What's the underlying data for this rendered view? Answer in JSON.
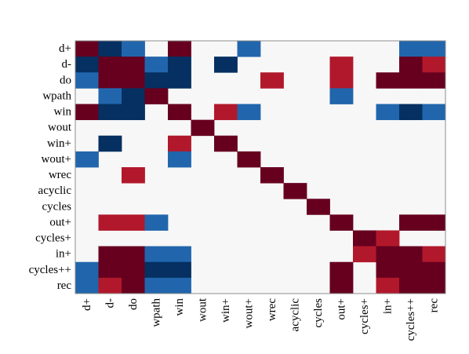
{
  "chart_data": {
    "type": "heatmap",
    "title": "",
    "xlabel": "",
    "ylabel": "",
    "rows": [
      "d+",
      "d-",
      "do",
      "wpath",
      "win",
      "wout",
      "win+",
      "wout+",
      "wrec",
      "acyclic",
      "cycles",
      "out+",
      "cycles+",
      "in+",
      "cycles++",
      "rec"
    ],
    "columns": [
      "d+",
      "d-",
      "do",
      "wpath",
      "win",
      "wout",
      "win+",
      "wout+",
      "wrec",
      "acyclic",
      "cycles",
      "out+",
      "cycles+",
      "in+",
      "cycles++",
      "rec"
    ],
    "value_range": [
      -1,
      1
    ],
    "colors": {
      "strong_positive": "#67001f",
      "positive": "#b2182b",
      "neutral": "#f7f7f7",
      "negative": "#2166ac",
      "strong_negative": "#053061"
    },
    "values": [
      [
        1.0,
        -1.0,
        -0.7,
        0.0,
        1.0,
        0.0,
        0.0,
        -0.7,
        0.0,
        0.0,
        0.0,
        0.0,
        0.0,
        0.0,
        -0.7,
        -0.7
      ],
      [
        -1.0,
        1.0,
        1.0,
        -0.7,
        -1.0,
        0.0,
        -1.0,
        0.0,
        0.0,
        0.0,
        0.0,
        0.7,
        0.0,
        0.0,
        1.0,
        0.7
      ],
      [
        -0.7,
        1.0,
        1.0,
        -1.0,
        -1.0,
        0.0,
        0.0,
        0.0,
        0.7,
        0.0,
        0.0,
        0.7,
        0.0,
        1.0,
        1.0,
        1.0
      ],
      [
        0.0,
        -0.7,
        -1.0,
        1.0,
        0.0,
        0.0,
        0.0,
        0.0,
        0.0,
        0.0,
        0.0,
        -0.7,
        0.0,
        0.0,
        0.0,
        0.0
      ],
      [
        1.0,
        -1.0,
        -1.0,
        0.0,
        1.0,
        0.0,
        0.7,
        -0.7,
        0.0,
        0.0,
        0.0,
        0.0,
        0.0,
        -0.7,
        -1.0,
        -0.7
      ],
      [
        0.0,
        0.0,
        0.0,
        0.0,
        0.0,
        1.0,
        0.0,
        0.0,
        0.0,
        0.0,
        0.0,
        0.0,
        0.0,
        0.0,
        0.0,
        0.0
      ],
      [
        0.0,
        -1.0,
        0.0,
        0.0,
        0.7,
        0.0,
        1.0,
        0.0,
        0.0,
        0.0,
        0.0,
        0.0,
        0.0,
        0.0,
        0.0,
        0.0
      ],
      [
        -0.7,
        0.0,
        0.0,
        0.0,
        -0.7,
        0.0,
        0.0,
        1.0,
        0.0,
        0.0,
        0.0,
        0.0,
        0.0,
        0.0,
        0.0,
        0.0
      ],
      [
        0.0,
        0.0,
        0.7,
        0.0,
        0.0,
        0.0,
        0.0,
        0.0,
        1.0,
        0.0,
        0.0,
        0.0,
        0.0,
        0.0,
        0.0,
        0.0
      ],
      [
        0.0,
        0.0,
        0.0,
        0.0,
        0.0,
        0.0,
        0.0,
        0.0,
        0.0,
        1.0,
        0.0,
        0.0,
        0.0,
        0.0,
        0.0,
        0.0
      ],
      [
        0.0,
        0.0,
        0.0,
        0.0,
        0.0,
        0.0,
        0.0,
        0.0,
        0.0,
        0.0,
        1.0,
        0.0,
        0.0,
        0.0,
        0.0,
        0.0
      ],
      [
        0.0,
        0.7,
        0.7,
        -0.7,
        0.0,
        0.0,
        0.0,
        0.0,
        0.0,
        0.0,
        0.0,
        1.0,
        0.0,
        0.0,
        1.0,
        1.0
      ],
      [
        0.0,
        0.0,
        0.0,
        0.0,
        0.0,
        0.0,
        0.0,
        0.0,
        0.0,
        0.0,
        0.0,
        0.0,
        1.0,
        0.7,
        0.0,
        0.0
      ],
      [
        0.0,
        1.0,
        1.0,
        -0.7,
        -0.7,
        0.0,
        0.0,
        0.0,
        0.0,
        0.0,
        0.0,
        0.0,
        0.7,
        1.0,
        1.0,
        0.7
      ],
      [
        -0.7,
        1.0,
        1.0,
        -1.0,
        -1.0,
        0.0,
        0.0,
        0.0,
        0.0,
        0.0,
        0.0,
        1.0,
        0.0,
        1.0,
        1.0,
        1.0
      ],
      [
        -0.7,
        0.7,
        1.0,
        -0.7,
        -0.7,
        0.0,
        0.0,
        0.0,
        0.0,
        0.0,
        0.0,
        1.0,
        0.0,
        0.7,
        1.0,
        1.0
      ]
    ]
  }
}
